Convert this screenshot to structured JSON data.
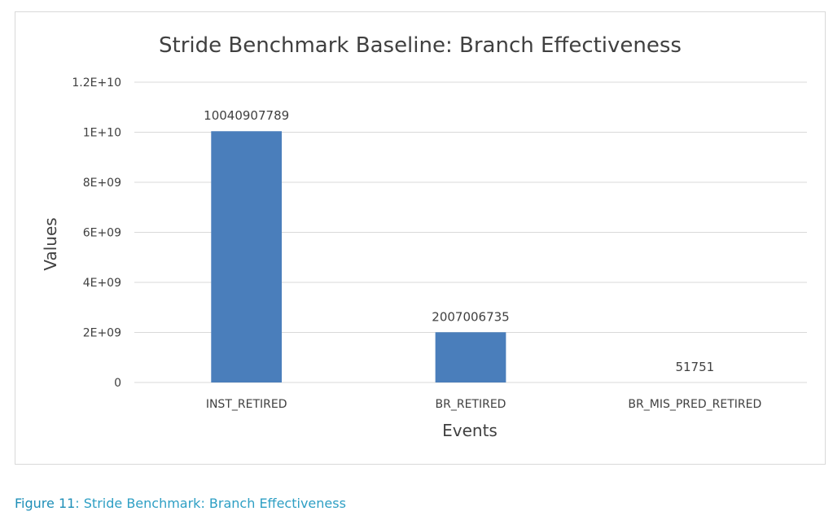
{
  "chart_data": {
    "type": "bar",
    "title": "Stride Benchmark Baseline: Branch Effectiveness",
    "xlabel": "Events",
    "ylabel": "Values",
    "categories": [
      "INST_RETIRED",
      "BR_RETIRED",
      "BR_MIS_PRED_RETIRED"
    ],
    "values": [
      10040907789,
      2007006735,
      51751
    ],
    "data_labels": [
      "10040907789",
      "2007006735",
      "51751"
    ],
    "ylim": [
      0,
      12000000000
    ],
    "yticks": [
      0,
      2000000000,
      4000000000,
      6000000000,
      8000000000,
      10000000000,
      12000000000
    ],
    "ytick_labels": [
      "0",
      "2E+09",
      "4E+09",
      "6E+09",
      "8E+09",
      "1E+10",
      "1.2E+10"
    ],
    "grid": true,
    "legend": "none",
    "bar_color": "#4a7ebb",
    "grid_color": "#d9d9d9",
    "text_color": "#404040"
  },
  "caption": {
    "label": "Figure 11",
    "text": ": Stride Benchmark: Branch Effectiveness"
  }
}
